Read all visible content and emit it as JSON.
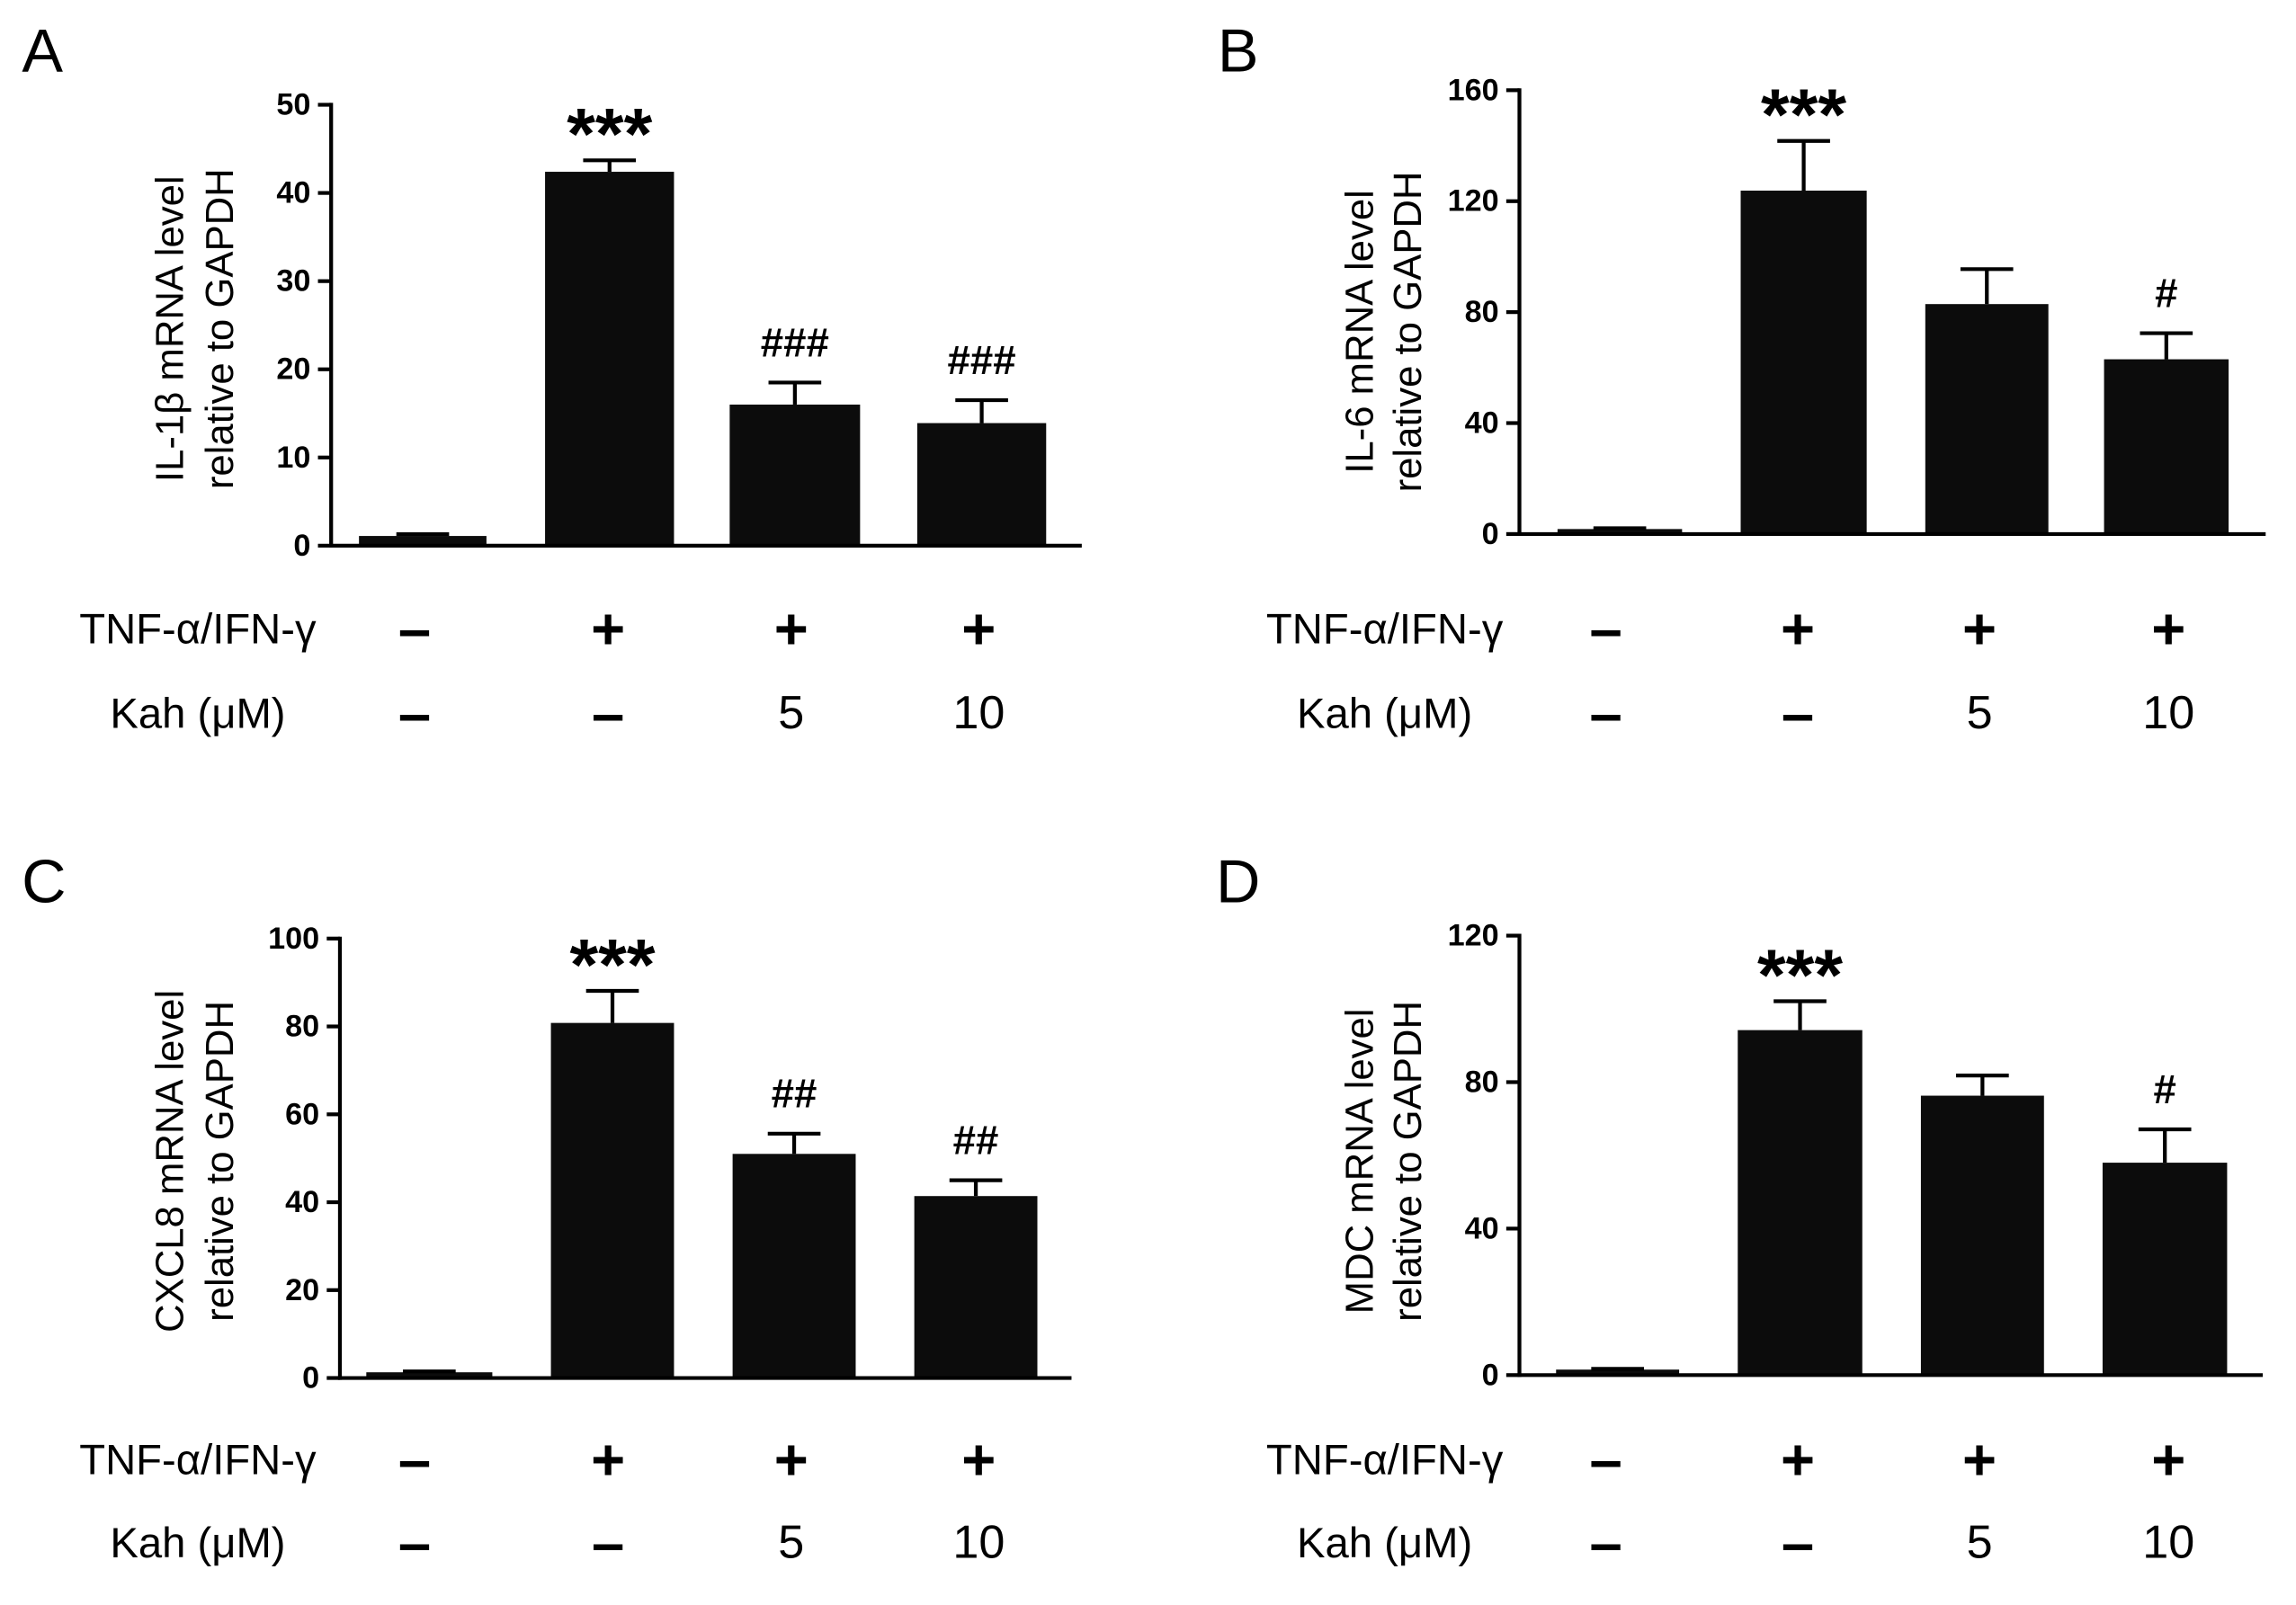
{
  "colors": {
    "bars": "#0c0c0c",
    "axes": "#000000",
    "background": "#ffffff"
  },
  "chart_data": [
    {
      "panel_label": "A",
      "type": "bar",
      "ylabel": [
        "IL-1β mRNA level",
        "relative to GAPDH"
      ],
      "ylim": [
        0,
        50
      ],
      "yticks": [
        0,
        10,
        20,
        30,
        40,
        50
      ],
      "values": [
        1.1,
        42.4,
        16.0,
        13.9
      ],
      "errors": [
        0.2,
        1.3,
        2.5,
        2.6
      ],
      "significance": [
        "",
        "***",
        "###",
        "###"
      ],
      "treatment_rows": [
        {
          "label": "TNF-α/IFN-γ",
          "values": [
            "–",
            "+",
            "+",
            "+"
          ]
        },
        {
          "label": "Kah (μM)",
          "values": [
            "–",
            "–",
            "5",
            "10"
          ]
        }
      ]
    },
    {
      "panel_label": "B",
      "type": "bar",
      "ylabel": [
        "IL-6 mRNA level",
        "relative to GAPDH"
      ],
      "ylim": [
        0,
        160
      ],
      "yticks": [
        0,
        40,
        80,
        120,
        160
      ],
      "values": [
        1.8,
        123.8,
        82.9,
        63.0
      ],
      "errors": [
        0.3,
        17.9,
        12.6,
        9.4
      ],
      "significance": [
        "",
        "***",
        "",
        "#"
      ],
      "treatment_rows": [
        {
          "label": "TNF-α/IFN-γ",
          "values": [
            "–",
            "+",
            "+",
            "+"
          ]
        },
        {
          "label": "Kah (μM)",
          "values": [
            "–",
            "–",
            "5",
            "10"
          ]
        }
      ]
    },
    {
      "panel_label": "C",
      "type": "bar",
      "ylabel": [
        "CXCL8 mRNA level",
        "relative to GAPDH"
      ],
      "ylim": [
        0,
        100
      ],
      "yticks": [
        0,
        20,
        40,
        60,
        80,
        100
      ],
      "values": [
        1.3,
        80.8,
        51.0,
        41.4
      ],
      "errors": [
        0.2,
        7.3,
        4.6,
        3.6
      ],
      "significance": [
        "",
        "***",
        "##",
        "##"
      ],
      "treatment_rows": [
        {
          "label": "TNF-α/IFN-γ",
          "values": [
            "–",
            "+",
            "+",
            "+"
          ]
        },
        {
          "label": "Kah (μM)",
          "values": [
            "–",
            "–",
            "5",
            "10"
          ]
        }
      ]
    },
    {
      "panel_label": "D",
      "type": "bar",
      "ylabel": [
        "MDC mRNA level",
        "relative to GAPDH"
      ],
      "ylim": [
        0,
        120
      ],
      "yticks": [
        0,
        40,
        80,
        120
      ],
      "values": [
        1.5,
        94.2,
        76.3,
        58.0
      ],
      "errors": [
        0.2,
        7.9,
        5.5,
        9.1
      ],
      "significance": [
        "",
        "***",
        "",
        "#"
      ],
      "treatment_rows": [
        {
          "label": "TNF-α/IFN-γ",
          "values": [
            "–",
            "+",
            "+",
            "+"
          ]
        },
        {
          "label": "Kah (μM)",
          "values": [
            "–",
            "–",
            "5",
            "10"
          ]
        }
      ]
    }
  ]
}
